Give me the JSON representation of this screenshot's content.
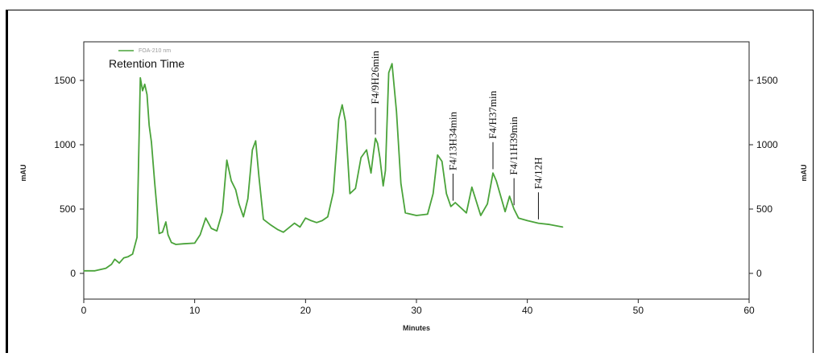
{
  "chart_data": {
    "type": "line",
    "title": "",
    "legend_entry": "FOA-210 nm",
    "legend_title": "Retention Time",
    "legend_placement": "top-left",
    "xlabel": "Minutes",
    "ylabel_left": "mAU",
    "ylabel_right": "mAU",
    "xlim": [
      0,
      60
    ],
    "ylim": [
      -200,
      1800
    ],
    "x_ticks": [
      0,
      10,
      20,
      30,
      40,
      50,
      60
    ],
    "y_ticks": [
      0,
      500,
      1000,
      1500
    ],
    "grid": false,
    "series": [
      {
        "name": "FOA-210 nm",
        "color": "#4aa33a",
        "x": [
          0,
          1,
          2,
          2.5,
          2.8,
          3.2,
          3.6,
          4.0,
          4.4,
          4.8,
          5.1,
          5.3,
          5.5,
          5.7,
          5.9,
          6.1,
          6.4,
          6.8,
          7.1,
          7.4,
          7.6,
          7.9,
          8.3,
          9,
          10,
          10.5,
          11,
          11.5,
          12,
          12.5,
          12.9,
          13.3,
          13.7,
          14,
          14.4,
          14.8,
          15.2,
          15.5,
          15.8,
          16.2,
          16.8,
          17.5,
          18,
          18.5,
          19,
          19.5,
          20,
          20.5,
          21,
          21.5,
          22,
          22.5,
          23,
          23.3,
          23.6,
          24,
          24.5,
          25,
          25.5,
          25.9,
          26.1,
          26.3,
          26.5,
          26.7,
          27,
          27.2,
          27.5,
          27.8,
          28.2,
          28.6,
          29,
          30,
          31,
          31.5,
          31.9,
          32.3,
          32.7,
          33.1,
          33.5,
          34,
          34.5,
          35,
          35.4,
          35.8,
          36.4,
          36.9,
          37.2,
          37.6,
          38,
          38.4,
          38.8,
          39.2,
          40,
          41,
          42,
          43.2
        ],
        "y": [
          20,
          20,
          40,
          70,
          110,
          80,
          120,
          130,
          150,
          280,
          1520,
          1420,
          1470,
          1390,
          1150,
          1020,
          700,
          310,
          320,
          400,
          300,
          240,
          225,
          230,
          235,
          300,
          430,
          350,
          330,
          480,
          880,
          720,
          650,
          540,
          440,
          580,
          960,
          1030,
          750,
          420,
          380,
          340,
          320,
          355,
          390,
          360,
          430,
          410,
          395,
          410,
          440,
          630,
          1200,
          1310,
          1180,
          620,
          660,
          900,
          960,
          780,
          920,
          1050,
          1010,
          900,
          680,
          800,
          1560,
          1630,
          1260,
          700,
          470,
          450,
          460,
          620,
          920,
          870,
          620,
          520,
          550,
          510,
          470,
          670,
          560,
          450,
          540,
          780,
          720,
          600,
          480,
          600,
          500,
          430,
          410,
          390,
          380,
          360
        ]
      }
    ],
    "annotations": [
      {
        "label": "F4/9H26min",
        "x": 26.3
      },
      {
        "label": "F4/13H34min",
        "x": 33.3
      },
      {
        "label": "F4/H37min",
        "x": 36.9
      },
      {
        "label": "F4/11H39min",
        "x": 38.8
      },
      {
        "label": "F4/12H",
        "x": 41.0
      }
    ]
  }
}
